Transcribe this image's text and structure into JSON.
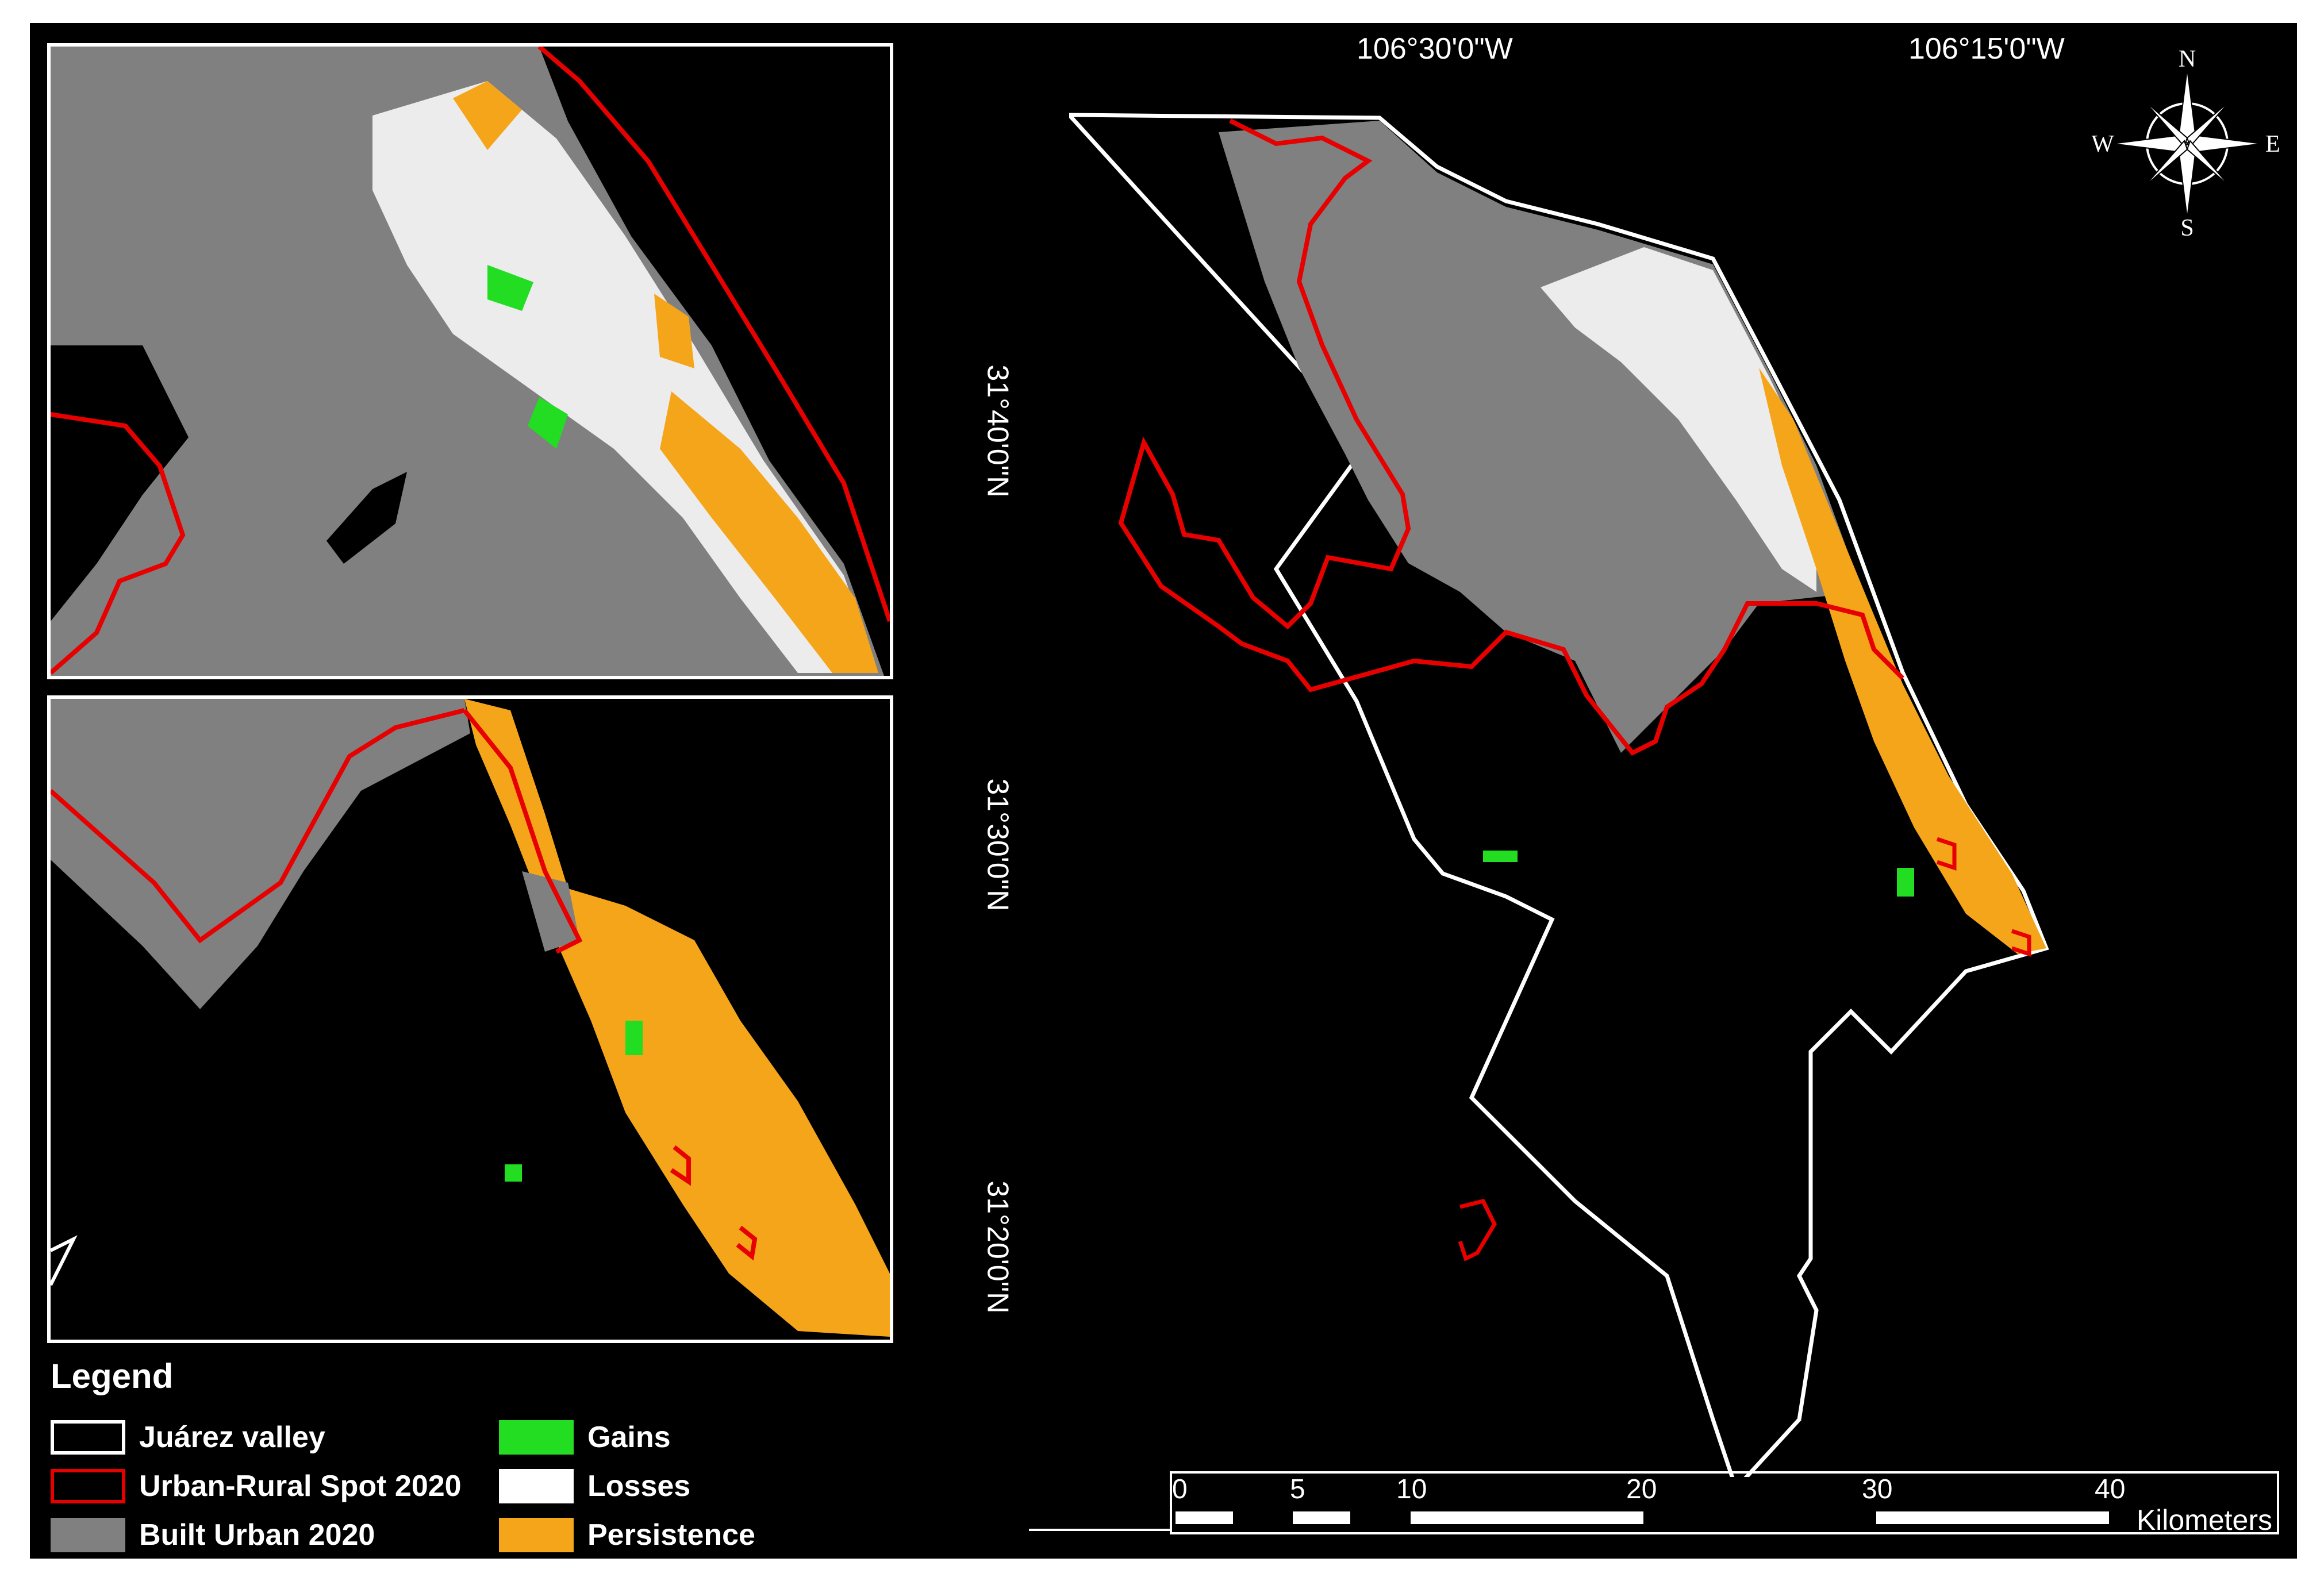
{
  "map": {
    "coordinates": {
      "lon_left": "106°30'0\"W",
      "lon_right": "106°15'0\"W",
      "lat_top": "31°40'0\"N",
      "lat_mid": "31°30'0\"N",
      "lat_bottom": "31°20'0\"N"
    },
    "compass": {
      "n": "N",
      "s": "S",
      "e": "E",
      "w": "W"
    },
    "legend": {
      "title": "Legend",
      "items": [
        {
          "label": "Juárez valley",
          "fill": "#000000",
          "stroke": "#ffffff"
        },
        {
          "label": "Urban-Rural Spot 2020",
          "fill": "#000000",
          "stroke": "#e60000"
        },
        {
          "label": "Built Urban 2020",
          "fill": "#808080",
          "stroke": "#808080"
        },
        {
          "label": "Gains",
          "fill": "#22dd22",
          "stroke": "#22dd22"
        },
        {
          "label": "Losses",
          "fill": "#ffffff",
          "stroke": "#ffffff"
        },
        {
          "label": "Persistence",
          "fill": "#f5a51a",
          "stroke": "#f5a51a"
        }
      ]
    },
    "scalebar": {
      "ticks": [
        "0",
        "5",
        "10",
        "20",
        "30",
        "40"
      ],
      "unit": "Kilometers"
    },
    "colors": {
      "background": "#000000",
      "boundary": "#ffffff",
      "urban_rural": "#e60000",
      "built": "#808080",
      "gains": "#22dd22",
      "losses": "#ffffff",
      "persistence": "#f5a51a"
    }
  }
}
